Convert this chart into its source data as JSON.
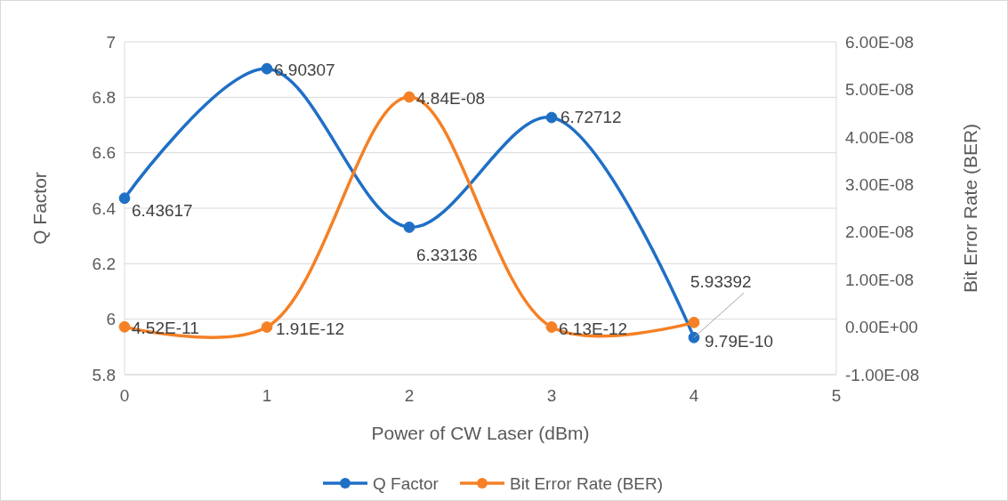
{
  "chart_data": {
    "type": "line",
    "xlabel": "Power of CW Laser (dBm)",
    "ylabel": "Q Factor",
    "y2label": "Bit Error Rate (BER)",
    "x": [
      0,
      1,
      2,
      3,
      4
    ],
    "series": [
      {
        "name": "Q Factor",
        "color": "#1f6fc5",
        "values": [
          6.43617,
          6.90307,
          6.33136,
          6.72712,
          5.93392
        ],
        "value_labels": [
          "6.43617",
          "6.90307",
          "6.33136",
          "6.72712",
          "5.93392"
        ]
      },
      {
        "name": "Bit Error Rate (BER)",
        "color": "#f58025",
        "axis": "y2",
        "values": [
          4.52e-11,
          1.91e-12,
          4.84e-08,
          6.13e-12,
          9.79e-10
        ],
        "value_labels": [
          "4.52E-11",
          "1.91E-12",
          "4.84E-08",
          "6.13E-12",
          "9.79E-10"
        ]
      }
    ],
    "xlim": [
      0,
      5
    ],
    "xticks": [
      0,
      1,
      2,
      3,
      4,
      5
    ],
    "ylim": [
      5.8,
      7
    ],
    "yticks": [
      5.8,
      6,
      6.2,
      6.4,
      6.6,
      6.8,
      7
    ],
    "y2lim": [
      -1e-08,
      6e-08
    ],
    "y2ticks": [
      {
        "value": -1e-08,
        "label": "-1.00E-08"
      },
      {
        "value": 0,
        "label": "0.00E+00"
      },
      {
        "value": 1e-08,
        "label": "1.00E-08"
      },
      {
        "value": 2e-08,
        "label": "2.00E-08"
      },
      {
        "value": 3e-08,
        "label": "3.00E-08"
      },
      {
        "value": 4e-08,
        "label": "4.00E-08"
      },
      {
        "value": 5e-08,
        "label": "5.00E-08"
      },
      {
        "value": 6e-08,
        "label": "6.00E-08"
      }
    ],
    "grid": "y",
    "legend": "bottom",
    "marker": "circle",
    "line_style": "solid"
  }
}
